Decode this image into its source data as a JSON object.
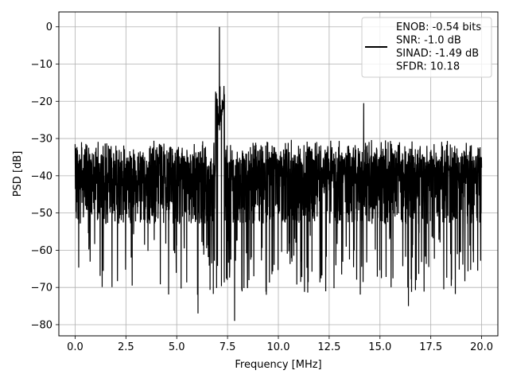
{
  "chart_data": {
    "type": "line",
    "title": "",
    "xlabel": "Frequency [MHz]",
    "ylabel": "PSD [dB]",
    "xlim": [
      -0.8,
      20.8
    ],
    "ylim": [
      -83,
      4
    ],
    "grid": true,
    "legend_position": "top-right",
    "x_ticks": [
      0.0,
      2.5,
      5.0,
      7.5,
      10.0,
      12.5,
      15.0,
      17.5,
      20.0
    ],
    "x_tick_labels": [
      "0.0",
      "2.5",
      "5.0",
      "7.5",
      "10.0",
      "12.5",
      "15.0",
      "17.5",
      "20.0"
    ],
    "y_ticks": [
      0,
      -10,
      -20,
      -30,
      -40,
      -50,
      -60,
      -70,
      -80
    ],
    "y_tick_labels": [
      "0",
      "−10",
      "−20",
      "−30",
      "−40",
      "−50",
      "−60",
      "−70",
      "−80"
    ],
    "series": [
      {
        "name": "ENOB: -0.54 bits\nSNR: -1.0 dB\nSINAD: -1.49 dB\nSFDR: 10.18",
        "legend_lines": [
          "ENOB: -0.54 bits",
          "SNR: -1.0 dB",
          "SINAD: -1.49 dB",
          "SFDR: 10.18"
        ],
        "color": "#000000",
        "x_range": [
          0,
          20
        ],
        "noise_floor_db": -46,
        "noise_peak_db_range": [
          -37,
          -30
        ],
        "noise_dip_db_range": [
          -72,
          -55
        ],
        "features": [
          {
            "x": 0.0,
            "y": -31.5
          },
          {
            "x": 7.1,
            "y": 0
          },
          {
            "x": 7.13,
            "y": -16
          },
          {
            "x": 6.05,
            "y": -77
          },
          {
            "x": 7.85,
            "y": -79
          },
          {
            "x": 14.2,
            "y": -20.5
          },
          {
            "x": 16.4,
            "y": -75
          }
        ]
      }
    ]
  }
}
